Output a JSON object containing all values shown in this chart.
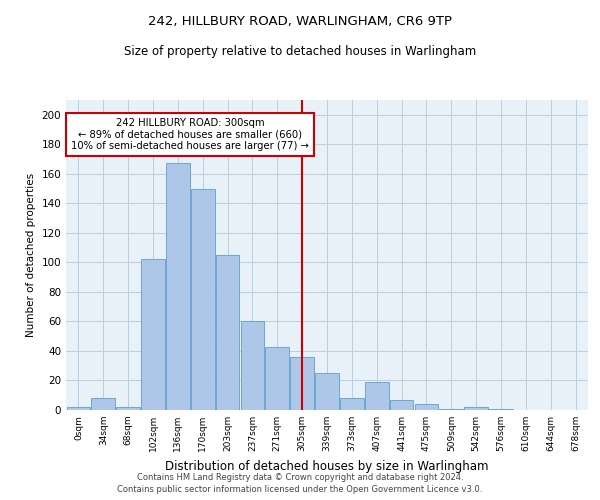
{
  "title1": "242, HILLBURY ROAD, WARLINGHAM, CR6 9TP",
  "title2": "Size of property relative to detached houses in Warlingham",
  "xlabel": "Distribution of detached houses by size in Warlingham",
  "ylabel": "Number of detached properties",
  "bar_labels": [
    "0sqm",
    "34sqm",
    "68sqm",
    "102sqm",
    "136sqm",
    "170sqm",
    "203sqm",
    "237sqm",
    "271sqm",
    "305sqm",
    "339sqm",
    "373sqm",
    "407sqm",
    "441sqm",
    "475sqm",
    "509sqm",
    "542sqm",
    "576sqm",
    "610sqm",
    "644sqm",
    "678sqm"
  ],
  "bar_values": [
    2,
    8,
    2,
    102,
    167,
    150,
    105,
    60,
    43,
    36,
    25,
    8,
    19,
    7,
    4,
    1,
    2,
    1,
    0,
    0,
    0
  ],
  "bar_color": "#aec6e8",
  "bar_edgecolor": "#5a9fd4",
  "vline_x": 9.0,
  "vline_color": "#cc0000",
  "annotation_text": "242 HILLBURY ROAD: 300sqm\n← 89% of detached houses are smaller (660)\n10% of semi-detached houses are larger (77) →",
  "annotation_box_color": "#cc0000",
  "ylim": [
    0,
    210
  ],
  "yticks": [
    0,
    20,
    40,
    60,
    80,
    100,
    120,
    140,
    160,
    180,
    200
  ],
  "grid_color": "#b8cfe0",
  "bg_color": "#e8f0f8",
  "footer1": "Contains HM Land Registry data © Crown copyright and database right 2024.",
  "footer2": "Contains public sector information licensed under the Open Government Licence v3.0."
}
